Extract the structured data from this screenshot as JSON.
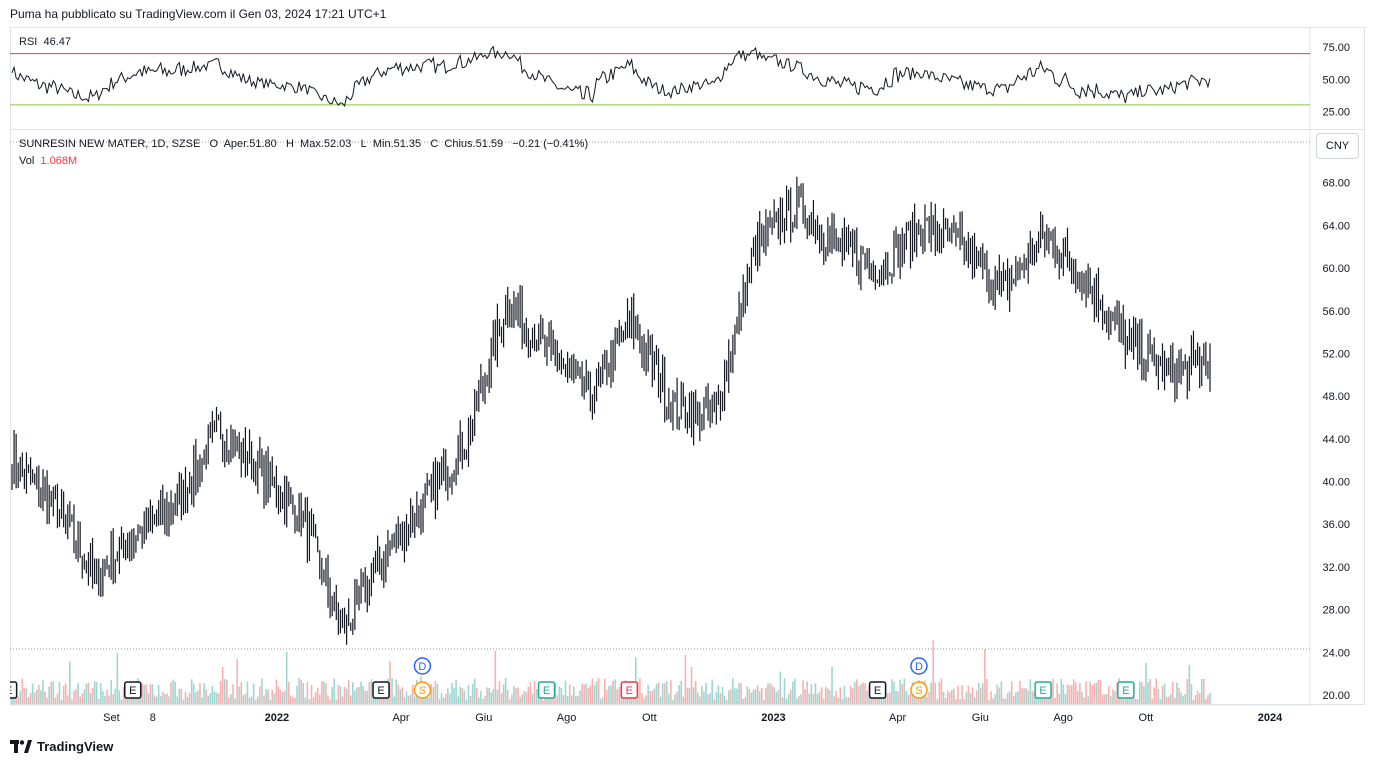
{
  "header": {
    "text": "Puma ha pubblicato su TradingView.com il Gen 03, 2024 17:21 UTC+1"
  },
  "symbol": {
    "name": "SUNRESIN NEW MATER, 1D, SZSE",
    "o_label": "O",
    "open_label": "Aper.",
    "open": "51.80",
    "h_label": "H",
    "high_label": "Max.",
    "high": "52.03",
    "l_label": "L",
    "low_label": "Min.",
    "low": "51.35",
    "c_label": "C",
    "close_label": "Chius.",
    "close": "51.59",
    "change": "−0.21 (−0.41%)"
  },
  "volume": {
    "label": "Vol",
    "value": "1.068M"
  },
  "rsi": {
    "label": "RSI",
    "value": "46.47",
    "upper": 70,
    "lower": 30,
    "ticks": [
      "75.00",
      "50.00",
      "25.00"
    ]
  },
  "currency": "CNY",
  "price_axis": [
    "68.00",
    "64.00",
    "60.00",
    "56.00",
    "52.00",
    "48.00",
    "44.00",
    "40.00",
    "36.00",
    "32.00",
    "28.00",
    "24.00",
    "20.00"
  ],
  "time_axis": [
    "Set",
    "8",
    "2022",
    "Apr",
    "Giu",
    "Ago",
    "Ott",
    "2023",
    "Apr",
    "Giu",
    "Ago",
    "Ott",
    "2024"
  ],
  "footer": {
    "brand": "TradingView"
  },
  "colors": {
    "candle": "#131722",
    "rsi_line": "#131722",
    "rsi_upper": "#f23645",
    "rsi_lower": "#89c541",
    "vol_up": "#26a69a",
    "vol_down": "#ef5350",
    "event_e": "#131722",
    "event_e_green": "#22ab94",
    "event_e_red": "#f23645",
    "event_d": "#2962ff",
    "event_s": "#ff9800"
  },
  "events": [
    {
      "label": "E",
      "type": "earnings",
      "date": "2021-07"
    },
    {
      "label": "E",
      "type": "earnings",
      "date": "2021-10"
    },
    {
      "label": "E",
      "type": "earnings",
      "date": "2022-04"
    },
    {
      "label": "D",
      "type": "dividend",
      "date": "2022-05"
    },
    {
      "label": "S",
      "type": "split",
      "date": "2022-05"
    },
    {
      "label": "E",
      "type": "earnings-beat",
      "date": "2022-08"
    },
    {
      "label": "E",
      "type": "earnings-miss",
      "date": "2022-10"
    },
    {
      "label": "E",
      "type": "earnings",
      "date": "2023-04"
    },
    {
      "label": "D",
      "type": "dividend",
      "date": "2023-05"
    },
    {
      "label": "S",
      "type": "split",
      "date": "2023-05"
    },
    {
      "label": "E",
      "type": "earnings-beat",
      "date": "2023-08"
    },
    {
      "label": "E",
      "type": "earnings-beat",
      "date": "2023-10"
    }
  ],
  "chart_data": {
    "type": "line",
    "note_type": "ohlc-bars with volume and RSI",
    "price_range": [
      20,
      72
    ],
    "rsi_range": [
      12,
      90
    ],
    "x": [
      "2021-08",
      "2021-09",
      "2021-10",
      "2021-11",
      "2021-12",
      "2022-01",
      "2022-02",
      "2022-03",
      "2022-04",
      "2022-05",
      "2022-06",
      "2022-07",
      "2022-08",
      "2022-09",
      "2022-10",
      "2022-11",
      "2022-12",
      "2023-01",
      "2023-02",
      "2023-03",
      "2023-04",
      "2023-05",
      "2023-06",
      "2023-07",
      "2023-08",
      "2023-09",
      "2023-10",
      "2023-11",
      "2023-12",
      "2024-01"
    ],
    "series": [
      {
        "name": "SUNRESIN NEW MATER",
        "values": [
          42.0,
          38.0,
          31.0,
          35.0,
          38.0,
          45.0,
          41.0,
          37.0,
          26.0,
          33.0,
          38.0,
          44.0,
          57.0,
          52.0,
          48.0,
          55.0,
          47.0,
          46.0,
          62.0,
          66.0,
          62.0,
          60.0,
          64.0,
          62.0,
          58.0,
          63.0,
          59.0,
          53.0,
          50.0,
          51.59
        ]
      }
    ]
  }
}
